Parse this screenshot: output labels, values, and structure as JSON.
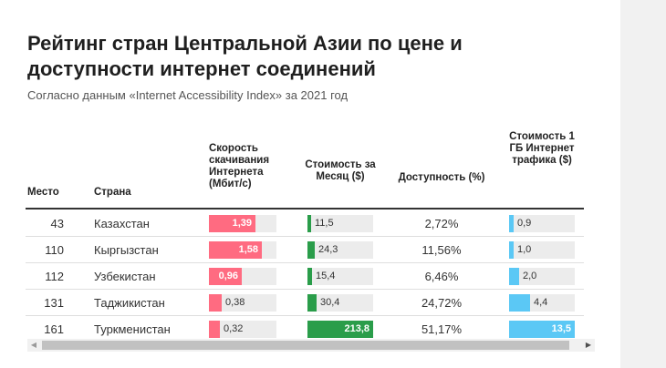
{
  "title": "Рейтинг стран Центральной Азии по цене и доступности интернет соединений",
  "subtitle": "Согласно данным «Internet Accessibility Index» за 2021 год",
  "headers": {
    "rank": "Место",
    "country": "Страна",
    "speed": "Скорость скачивания Интернета (Мбит/с)",
    "monthly_cost": "Стоимость за Месяц ($)",
    "affordability": "Доступность (%)",
    "gb_cost": "Стоимость 1 ГБ Интернет трафика ($)"
  },
  "colors": {
    "speed": "#ff6b81",
    "monthly_cost": "#2a9d4a",
    "gb_cost": "#5bc8f5",
    "track": "#ececec"
  },
  "chart_data": {
    "type": "table",
    "title": "Рейтинг стран Центральной Азии по цене и доступности интернет соединений",
    "subtitle": "Согласно данным «Internet Accessibility Index» за 2021 год",
    "columns": [
      "Место",
      "Страна",
      "Скорость скачивания Интернета (Мбит/с)",
      "Стоимость за Месяц ($)",
      "Доступность (%)",
      "Стоимость 1 ГБ Интернет трафика ($)"
    ],
    "domains": {
      "speed": [
        0,
        2
      ],
      "monthly_cost": [
        0,
        213.8
      ],
      "gb_cost": [
        0,
        13.5
      ]
    },
    "rows": [
      {
        "rank": "43",
        "country": "Казахстан",
        "speed": 1.39,
        "speed_label": "1,39",
        "monthly_cost": 11.5,
        "monthly_cost_label": "11,5",
        "affordability": "2,72%",
        "gb_cost": 0.9,
        "gb_cost_label": "0,9"
      },
      {
        "rank": "110",
        "country": "Кыргызстан",
        "speed": 1.58,
        "speed_label": "1,58",
        "monthly_cost": 24.3,
        "monthly_cost_label": "24,3",
        "affordability": "11,56%",
        "gb_cost": 1.0,
        "gb_cost_label": "1,0"
      },
      {
        "rank": "112",
        "country": "Узбекистан",
        "speed": 0.96,
        "speed_label": "0,96",
        "monthly_cost": 15.4,
        "monthly_cost_label": "15,4",
        "affordability": "6,46%",
        "gb_cost": 2.0,
        "gb_cost_label": "2,0"
      },
      {
        "rank": "131",
        "country": "Таджикистан",
        "speed": 0.38,
        "speed_label": "0,38",
        "monthly_cost": 30.4,
        "monthly_cost_label": "30,4",
        "affordability": "24,72%",
        "gb_cost": 4.4,
        "gb_cost_label": "4,4"
      },
      {
        "rank": "161",
        "country": "Туркменистан",
        "speed": 0.32,
        "speed_label": "0,32",
        "monthly_cost": 213.8,
        "monthly_cost_label": "213,8",
        "affordability": "51,17%",
        "gb_cost": 13.5,
        "gb_cost_label": "13,5"
      }
    ]
  },
  "scrollbar": {
    "left_arrow": "◀",
    "right_arrow": "▶"
  }
}
